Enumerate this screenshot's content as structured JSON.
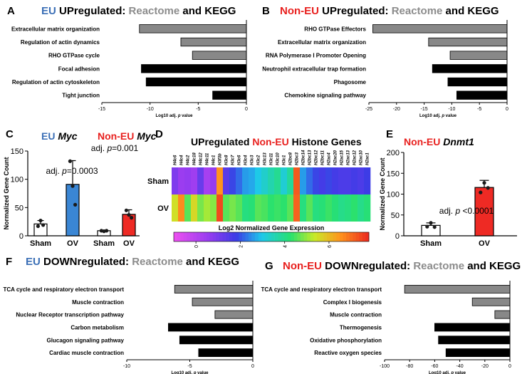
{
  "colors": {
    "eu_blue": "#3b6fb6",
    "non_eu_red": "#e8201e",
    "reactome_gray": "#8c8c8c",
    "kegg_black": "#000000",
    "bar_gray": "#888888",
    "ov_blue": "#3a86d4",
    "ov_red": "#ee2a24"
  },
  "panels": {
    "A": {
      "letter": "A",
      "t1": "EU",
      "t2": " UPregulated: ",
      "t3": "Reactome",
      "t4": " and KEGG"
    },
    "B": {
      "letter": "B",
      "t1": "Non-EU",
      "t2": " UPregulated: ",
      "t3": "Reactome",
      "t4": " and KEGG"
    },
    "C": {
      "letter": "C",
      "t1": "EU ",
      "t2": "Myc",
      "t3": "Non-EU ",
      "t4": "Myc"
    },
    "D": {
      "letter": "D",
      "t1": "UPregulated ",
      "t2": "Non-EU",
      "t3": " Histone Genes"
    },
    "E": {
      "letter": "E",
      "t1": "Non-EU ",
      "t2": "Dnmt1"
    },
    "F": {
      "letter": "F",
      "t1": "EU",
      "t2": " DOWNregulated: ",
      "t3": "Reactome",
      "t4": " and KEGG"
    },
    "G": {
      "letter": "G",
      "t1": "Non-EU",
      "t2": " DOWNregulated: ",
      "t3": "Reactome",
      "t4": " and KEGG"
    }
  },
  "chart_data": [
    {
      "panel": "A",
      "type": "bar",
      "orientation": "horizontal",
      "categories": [
        "Extracellular matrix organization",
        "Regulation of actin dynamics",
        "RHO GTPase cycle",
        "Focal adhesion",
        "Regulation of actin cytoskeleton",
        "Tight junction"
      ],
      "values": [
        -11.1,
        -6.8,
        -5.6,
        -10.9,
        -10.4,
        -3.5
      ],
      "source_colors": [
        "gray",
        "gray",
        "gray",
        "black",
        "black",
        "black"
      ],
      "xlabel_pre": "Log10 adj. ",
      "xlabel_p": "p",
      "xlabel_post": " value",
      "xlim": [
        -15,
        0
      ],
      "xticks": [
        -15,
        -10,
        -5,
        0
      ]
    },
    {
      "panel": "B",
      "type": "bar",
      "orientation": "horizontal",
      "categories": [
        "RHO GTPase Effectors",
        "Extracellular matrix organization",
        "RNA Polymerase I Promoter Opening",
        "Neutrophil extracellular trap formation",
        "Phagosome",
        "Chemokine signaling pathway"
      ],
      "values": [
        -24.3,
        -14.2,
        -10.3,
        -13.5,
        -10.7,
        -9.1
      ],
      "source_colors": [
        "gray",
        "gray",
        "gray",
        "black",
        "black",
        "black"
      ],
      "xlabel_pre": "Log10 adj. ",
      "xlabel_p": "p",
      "xlabel_post": " value",
      "xlim": [
        -25,
        0
      ],
      "xticks": [
        -25,
        -20,
        -15,
        -10,
        -5,
        0
      ]
    },
    {
      "panel": "C",
      "type": "bar",
      "categories": [
        "Sham",
        "OV",
        "Sham",
        "OV"
      ],
      "values": [
        21,
        91,
        9,
        38
      ],
      "errors": [
        6,
        42,
        1,
        8
      ],
      "points": [
        [
          17,
          27,
          19
        ],
        [
          132,
          88,
          55
        ],
        [
          9,
          8,
          9
        ],
        [
          45,
          37,
          32
        ]
      ],
      "ylabel": "Normalized Gene Count",
      "ylim": [
        0,
        150
      ],
      "yticks": [
        0,
        50,
        100,
        150
      ],
      "annotations": [
        {
          "pre": "adj. ",
          "p": "p",
          "post": "=0.0003"
        },
        {
          "pre": "adj. ",
          "p": "p",
          "post": "=0.001"
        }
      ]
    },
    {
      "panel": "D",
      "type": "heatmap",
      "genes": [
        "H4c6",
        "H4c4",
        "H4c2",
        "H4c18",
        "H4c12",
        "H4c11",
        "H4c1",
        "H3f3b",
        "H3c8",
        "H3c7",
        "H3c6",
        "H3c4",
        "H3c3",
        "H3c2",
        "H3c13",
        "H3c11",
        "H3c10",
        "H3c1",
        "H2bc8",
        "H2bc3",
        "H2bc14",
        "H2bc13",
        "H2bc12",
        "H2bc11",
        "H2ac4",
        "H2ac20",
        "H2ac15",
        "H2ac13",
        "H2ac12",
        "H2ac10",
        "H2ac1"
      ],
      "rows": [
        "Sham",
        "OV"
      ],
      "values": [
        [
          0.9,
          0.5,
          0.6,
          0.4,
          1.2,
          0.3,
          0.6,
          6.5,
          1.4,
          1.9,
          2.2,
          2.6,
          2.7,
          3.0,
          3.3,
          3.6,
          3.9,
          3.2,
          3.8,
          7.2,
          2.6,
          2.2,
          1.9,
          1.7,
          1.9,
          1.7,
          1.6,
          1.6,
          1.7,
          1.6,
          1.8
        ],
        [
          5.5,
          6.6,
          4.6,
          5.6,
          4.8,
          5.1,
          4.9,
          7.4,
          4.6,
          4.8,
          4.6,
          4.1,
          4.2,
          4.6,
          4.5,
          4.3,
          4.4,
          4.3,
          4.6,
          7.1,
          4.1,
          4.6,
          4.1,
          4.2,
          4.4,
          4.2,
          4.0,
          4.1,
          4.3,
          4.0,
          4.2
        ]
      ],
      "colorbar_label": "Log2 Normalized Gene Expression",
      "colorbar_ticks": [
        0,
        2,
        4,
        6
      ],
      "vmin": -1,
      "vmax": 7.8
    },
    {
      "panel": "E",
      "type": "bar",
      "categories": [
        "Sham",
        "OV"
      ],
      "values": [
        25,
        116
      ],
      "errors": [
        6,
        17
      ],
      "points": [
        [
          22,
          31,
          21
        ],
        [
          104,
          127,
          115
        ]
      ],
      "ylabel": "Normalized Gene Count",
      "ylim": [
        0,
        200
      ],
      "yticks": [
        0,
        50,
        100,
        150,
        200
      ],
      "annotations": [
        {
          "pre": "adj. ",
          "p": "p",
          "post": " <0.0001"
        }
      ]
    },
    {
      "panel": "F",
      "type": "bar",
      "orientation": "horizontal",
      "categories": [
        "TCA cycle and respiratory electron transport",
        "Muscle contraction",
        "Nuclear Receptor transcription pathway",
        "Carbon metabolism",
        "Glucagon signaling pathway",
        "Cardiac muscle contraction"
      ],
      "values": [
        -6.2,
        -4.8,
        -3.0,
        -6.7,
        -5.8,
        -4.3
      ],
      "source_colors": [
        "gray",
        "gray",
        "gray",
        "black",
        "black",
        "black"
      ],
      "xlabel_pre": "Log10 adj. ",
      "xlabel_p": "p",
      "xlabel_post": " value",
      "xlim": [
        -10,
        0
      ],
      "xticks": [
        -10,
        -5,
        0
      ]
    },
    {
      "panel": "G",
      "type": "bar",
      "orientation": "horizontal",
      "categories": [
        "TCA cycle and respiratory electron transport",
        "Complex I biogenesis",
        "Muscle contraction",
        "Thermogenesis",
        "Oxidative phosphorylation",
        "Reactive oxygen species"
      ],
      "values": [
        -84,
        -30,
        -12,
        -60,
        -57,
        -51
      ],
      "source_colors": [
        "gray",
        "gray",
        "gray",
        "black",
        "black",
        "black"
      ],
      "xlabel_pre": "Log10 adj. ",
      "xlabel_p": "p",
      "xlabel_post": " value",
      "xlim": [
        -100,
        0
      ],
      "xticks": [
        -100,
        -80,
        -60,
        -40,
        -20,
        0
      ]
    }
  ]
}
